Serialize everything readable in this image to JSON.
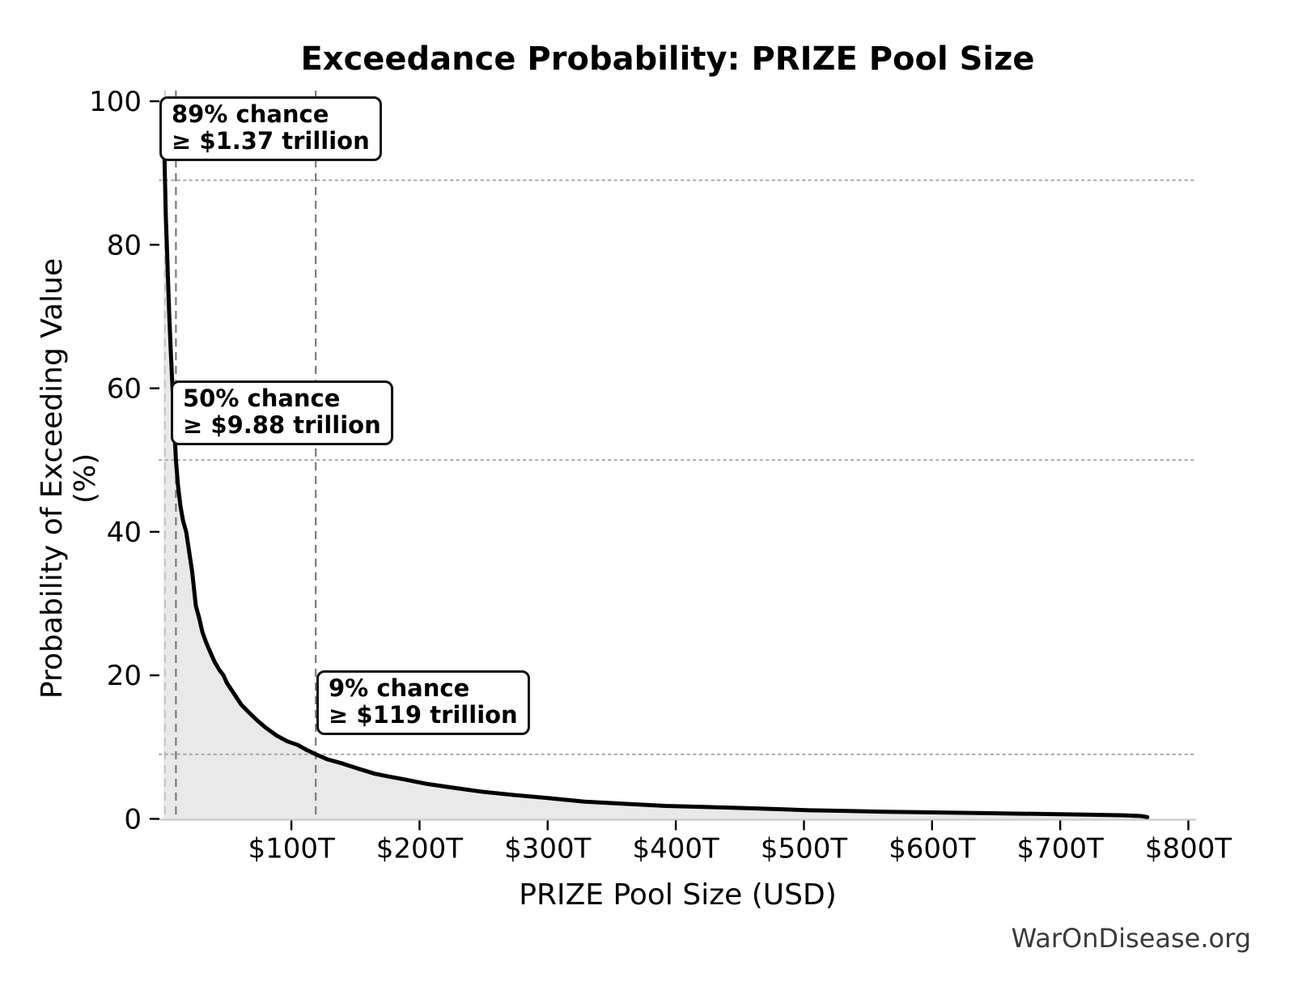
{
  "title": "Exceedance Probability: PRIZE Pool Size",
  "watermark": "WarOnDisease.org",
  "chart_data": {
    "type": "area",
    "title": "Exceedance Probability: PRIZE Pool Size",
    "xlabel": "PRIZE Pool Size (USD)",
    "ylabel": "Probability of Exceeding Value (%)",
    "x_unit": "trillions of USD",
    "xlim": [
      -3,
      806
    ],
    "ylim": [
      0,
      101.7
    ],
    "grid": "reference lines only",
    "legend": "none",
    "x_ticks": [
      {
        "value": 100,
        "label": "$100T"
      },
      {
        "value": 200,
        "label": "$200T"
      },
      {
        "value": 300,
        "label": "$300T"
      },
      {
        "value": 400,
        "label": "$400T"
      },
      {
        "value": 500,
        "label": "$500T"
      },
      {
        "value": 600,
        "label": "$600T"
      },
      {
        "value": 700,
        "label": "$700T"
      },
      {
        "value": 800,
        "label": "$800T"
      }
    ],
    "y_ticks": [
      {
        "value": 0,
        "label": "0"
      },
      {
        "value": 20,
        "label": "20"
      },
      {
        "value": 40,
        "label": "40"
      },
      {
        "value": 60,
        "label": "60"
      },
      {
        "value": 80,
        "label": "80"
      },
      {
        "value": 100,
        "label": "100"
      }
    ],
    "curve_points_T_pct": [
      [
        0.2,
        100
      ],
      [
        0.6,
        95
      ],
      [
        1.0,
        92
      ],
      [
        1.37,
        89
      ],
      [
        2.0,
        84
      ],
      [
        2.8,
        80
      ],
      [
        3.6,
        75.5
      ],
      [
        4.7,
        70
      ],
      [
        5.9,
        65
      ],
      [
        7.2,
        60
      ],
      [
        8.5,
        55
      ],
      [
        9.88,
        50
      ],
      [
        11.6,
        46.3
      ],
      [
        13.5,
        43.5
      ],
      [
        15.5,
        41.5
      ],
      [
        17.9,
        40
      ],
      [
        20,
        37.5
      ],
      [
        22.5,
        34.5
      ],
      [
        25.4,
        29.7
      ],
      [
        28,
        28
      ],
      [
        30.6,
        26
      ],
      [
        33,
        24.8
      ],
      [
        36,
        23.5
      ],
      [
        40,
        21.9
      ],
      [
        44,
        20.7
      ],
      [
        47,
        20
      ],
      [
        49.5,
        19
      ],
      [
        55,
        17.5
      ],
      [
        61,
        15.9
      ],
      [
        67,
        14.8
      ],
      [
        73.5,
        13.7
      ],
      [
        80,
        12.7
      ],
      [
        88.6,
        11.6
      ],
      [
        97,
        10.8
      ],
      [
        105,
        10.3
      ],
      [
        112,
        9.6
      ],
      [
        119,
        9.0
      ],
      [
        128,
        8.3
      ],
      [
        140,
        7.7
      ],
      [
        152,
        7.0
      ],
      [
        165,
        6.3
      ],
      [
        176,
        5.9
      ],
      [
        188,
        5.5
      ],
      [
        205,
        4.9
      ],
      [
        224,
        4.4
      ],
      [
        248,
        3.8
      ],
      [
        275,
        3.3
      ],
      [
        300,
        2.9
      ],
      [
        329,
        2.4
      ],
      [
        360,
        2.1
      ],
      [
        392,
        1.8
      ],
      [
        425,
        1.65
      ],
      [
        455,
        1.5
      ],
      [
        480,
        1.35
      ],
      [
        504,
        1.2
      ],
      [
        535,
        1.1
      ],
      [
        560,
        1.0
      ],
      [
        600,
        0.9
      ],
      [
        640,
        0.8
      ],
      [
        680,
        0.7
      ],
      [
        720,
        0.6
      ],
      [
        750,
        0.5
      ],
      [
        763,
        0.4
      ],
      [
        768,
        0.25
      ]
    ],
    "key_points": [
      {
        "probability_pct": 89,
        "pool_size_trillion": 1.37,
        "label_line1": "89% chance",
        "label_line2": "≥ $1.37 trillion"
      },
      {
        "probability_pct": 50,
        "pool_size_trillion": 9.88,
        "label_line1": "50% chance",
        "label_line2": "≥ $9.88 trillion"
      },
      {
        "probability_pct": 9,
        "pool_size_trillion": 119,
        "label_line1": "9% chance",
        "label_line2": "≥ $119 trillion"
      }
    ],
    "colors": {
      "curve": "#000000",
      "fill_under_curve": "#e9e9e9",
      "dashed_vline_major": "#7a7a7a",
      "dashed_vline_minor": "#b5b5b5",
      "dotted_hline": "#a6a6a6",
      "bottom_spine": "#c9c9c9",
      "tick": "#000000",
      "watermark_text": "#3a3a3a"
    }
  }
}
